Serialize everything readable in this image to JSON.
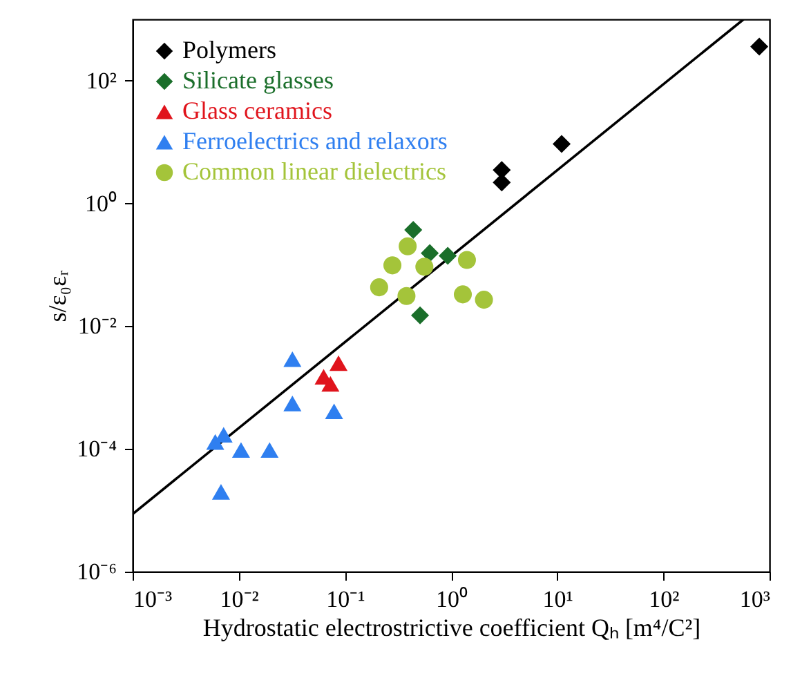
{
  "chart_data": {
    "type": "scatter",
    "xlabel": "Hydrostatic electrostrictive coefficient Qₕ [m⁴/C²]",
    "ylabel": "s/ε₀εᵣ",
    "log": "xy",
    "grid": false,
    "legend": "top left",
    "xlim": [
      0.001,
      1000
    ],
    "ylim": [
      1e-06,
      1000
    ],
    "xticks": [
      {
        "value": 0.001,
        "label": "10⁻³"
      },
      {
        "value": 0.01,
        "label": "10⁻²"
      },
      {
        "value": 0.1,
        "label": "10⁻¹"
      },
      {
        "value": 1,
        "label": "10⁰"
      },
      {
        "value": 10,
        "label": "10¹"
      },
      {
        "value": 100,
        "label": "10²"
      },
      {
        "value": 1000,
        "label": "10³"
      }
    ],
    "yticks": [
      {
        "value": 1e-06,
        "label": "10⁻⁶"
      },
      {
        "value": 0.0001,
        "label": "10⁻⁴"
      },
      {
        "value": 0.01,
        "label": "10⁻²"
      },
      {
        "value": 1,
        "label": "10⁰"
      },
      {
        "value": 100,
        "label": "10²"
      }
    ],
    "series": [
      {
        "type": "line",
        "color": "#000000",
        "line_style": "solid",
        "x": [
          0.001,
          569
        ],
        "values": [
          8.7e-06,
          1000
        ]
      },
      {
        "name": "Polymers",
        "color": "#000000",
        "marker": "diamond",
        "x": [
          800,
          3.0,
          3.0,
          11
        ],
        "values": [
          360,
          3.5,
          2.2,
          9.3
        ]
      },
      {
        "name": "Silicate glasses",
        "color": "#1a6e2a",
        "marker": "diamond",
        "x": [
          0.44,
          0.63,
          0.93,
          0.51
        ],
        "values": [
          0.37,
          0.155,
          0.14,
          0.015
        ]
      },
      {
        "name": "Glass ceramics",
        "color": "#e0141c",
        "marker": "triangle",
        "x": [
          0.063,
          0.073,
          0.087
        ],
        "values": [
          0.0015,
          0.00115,
          0.0025
        ]
      },
      {
        "name": "Ferroelectrics and relaxors",
        "color": "#2f7ff0",
        "marker": "triangle",
        "x": [
          0.032,
          0.032,
          0.079,
          0.006,
          0.0072,
          0.0105,
          0.0195,
          0.0068
        ],
        "values": [
          0.0029,
          0.00055,
          0.00041,
          0.00013,
          0.00017,
          9.6e-05,
          9.6e-05,
          2e-05
        ]
      },
      {
        "name": "Common linear dielectrics",
        "color": "#a4c43a",
        "marker": "circle",
        "x": [
          0.21,
          0.28,
          0.39,
          0.56,
          0.38,
          1.41,
          1.29,
          2.04
        ],
        "values": [
          0.043,
          0.098,
          0.2,
          0.093,
          0.031,
          0.12,
          0.033,
          0.027
        ]
      }
    ]
  }
}
